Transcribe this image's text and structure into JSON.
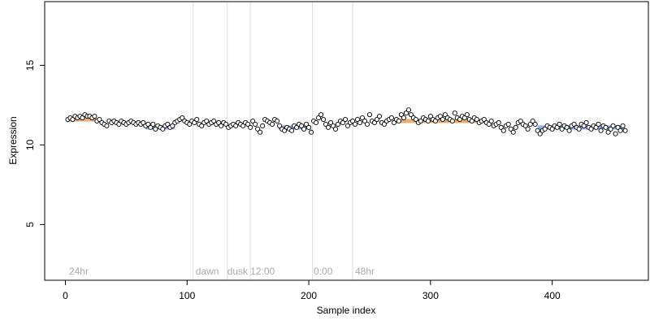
{
  "chart_data": {
    "type": "scatter",
    "title": "",
    "xlabel": "Sample index",
    "ylabel": "Expression",
    "xlim": [
      -17,
      479
    ],
    "ylim": [
      1.5,
      19
    ],
    "x_ticks": [
      0,
      100,
      200,
      300,
      400
    ],
    "x_tick_labels": [
      "0",
      "100",
      "200",
      "300",
      "400"
    ],
    "y_ticks": [
      5,
      10,
      15
    ],
    "y_tick_labels": [
      "5",
      "10",
      "15"
    ],
    "grid": false,
    "legend": "none",
    "vertical_lines_x": [
      105,
      133,
      152,
      203,
      236
    ],
    "annotations": [
      {
        "label": "24hr",
        "x": 3
      },
      {
        "label": "dawn",
        "x": 107
      },
      {
        "label": "dusk",
        "x": 133
      },
      {
        "label": "12:00",
        "x": 152
      },
      {
        "label": "0:00",
        "x": 204
      },
      {
        "label": "48hr",
        "x": 238
      }
    ],
    "colors": {
      "point_fill": "#ffffff",
      "point_stroke": "#000000",
      "warm_segment": "#e8a05a",
      "cool_segment": "#7aa0e8",
      "vline": "#dddddd",
      "annotation_text": "#aaaaaa"
    },
    "segments": [
      {
        "tone": "warm",
        "x": [
          2,
          25
        ],
        "y": 11.6
      },
      {
        "tone": "cool",
        "x": [
          66,
          90
        ],
        "y": 11.1
      },
      {
        "tone": "warm",
        "x": [
          270,
          345
        ],
        "y": 11.5
      },
      {
        "tone": "cool",
        "x": [
          175,
          200
        ],
        "y": 11.1
      },
      {
        "tone": "cool",
        "x": [
          388,
          460
        ],
        "y": 11.1
      }
    ],
    "series": [
      {
        "points": [
          [
            2,
            11.6
          ],
          [
            4,
            11.7
          ],
          [
            6,
            11.6
          ],
          [
            8,
            11.8
          ],
          [
            10,
            11.7
          ],
          [
            12,
            11.8
          ],
          [
            14,
            11.7
          ],
          [
            16,
            11.9
          ],
          [
            18,
            11.8
          ],
          [
            20,
            11.8
          ],
          [
            22,
            11.7
          ],
          [
            24,
            11.8
          ],
          [
            26,
            11.5
          ],
          [
            28,
            11.6
          ],
          [
            30,
            11.4
          ],
          [
            32,
            11.3
          ],
          [
            34,
            11.2
          ],
          [
            36,
            11.5
          ],
          [
            38,
            11.4
          ],
          [
            40,
            11.5
          ],
          [
            42,
            11.4
          ],
          [
            44,
            11.3
          ],
          [
            46,
            11.5
          ],
          [
            48,
            11.4
          ],
          [
            50,
            11.3
          ],
          [
            52,
            11.4
          ],
          [
            54,
            11.5
          ],
          [
            56,
            11.4
          ],
          [
            58,
            11.3
          ],
          [
            60,
            11.4
          ],
          [
            62,
            11.3
          ],
          [
            64,
            11.4
          ],
          [
            66,
            11.2
          ],
          [
            68,
            11.3
          ],
          [
            70,
            11.1
          ],
          [
            72,
            11.3
          ],
          [
            74,
            11.0
          ],
          [
            76,
            11.2
          ],
          [
            78,
            11.1
          ],
          [
            80,
            11.0
          ],
          [
            82,
            11.2
          ],
          [
            84,
            11.3
          ],
          [
            86,
            11.1
          ],
          [
            88,
            11.2
          ],
          [
            90,
            11.4
          ],
          [
            92,
            11.5
          ],
          [
            94,
            11.6
          ],
          [
            96,
            11.7
          ],
          [
            98,
            11.5
          ],
          [
            100,
            11.4
          ],
          [
            102,
            11.3
          ],
          [
            104,
            11.5
          ],
          [
            106,
            11.4
          ],
          [
            108,
            11.6
          ],
          [
            110,
            11.3
          ],
          [
            112,
            11.2
          ],
          [
            114,
            11.4
          ],
          [
            116,
            11.5
          ],
          [
            118,
            11.3
          ],
          [
            120,
            11.4
          ],
          [
            122,
            11.5
          ],
          [
            124,
            11.3
          ],
          [
            126,
            11.4
          ],
          [
            128,
            11.2
          ],
          [
            130,
            11.4
          ],
          [
            132,
            11.3
          ],
          [
            134,
            11.1
          ],
          [
            136,
            11.2
          ],
          [
            138,
            11.3
          ],
          [
            140,
            11.2
          ],
          [
            142,
            11.4
          ],
          [
            144,
            11.3
          ],
          [
            146,
            11.2
          ],
          [
            148,
            11.4
          ],
          [
            150,
            11.3
          ],
          [
            152,
            11.1
          ],
          [
            154,
            11.5
          ],
          [
            156,
            11.3
          ],
          [
            158,
            11.0
          ],
          [
            160,
            10.8
          ],
          [
            162,
            11.2
          ],
          [
            164,
            11.6
          ],
          [
            166,
            11.5
          ],
          [
            168,
            11.4
          ],
          [
            170,
            11.3
          ],
          [
            172,
            11.6
          ],
          [
            174,
            11.5
          ],
          [
            176,
            11.2
          ],
          [
            178,
            11.0
          ],
          [
            180,
            10.9
          ],
          [
            182,
            11.1
          ],
          [
            184,
            11.0
          ],
          [
            186,
            10.9
          ],
          [
            188,
            11.2
          ],
          [
            190,
            11.1
          ],
          [
            192,
            11.3
          ],
          [
            194,
            11.2
          ],
          [
            196,
            11.0
          ],
          [
            198,
            11.3
          ],
          [
            200,
            11.1
          ],
          [
            202,
            10.8
          ],
          [
            204,
            11.5
          ],
          [
            206,
            11.4
          ],
          [
            208,
            11.7
          ],
          [
            210,
            11.9
          ],
          [
            212,
            11.6
          ],
          [
            214,
            11.3
          ],
          [
            216,
            11.1
          ],
          [
            218,
            11.4
          ],
          [
            220,
            11.2
          ],
          [
            222,
            11.0
          ],
          [
            224,
            11.3
          ],
          [
            226,
            11.5
          ],
          [
            228,
            11.4
          ],
          [
            230,
            11.6
          ],
          [
            232,
            11.2
          ],
          [
            234,
            11.4
          ],
          [
            236,
            11.5
          ],
          [
            238,
            11.3
          ],
          [
            240,
            11.6
          ],
          [
            242,
            11.4
          ],
          [
            244,
            11.7
          ],
          [
            246,
            11.5
          ],
          [
            248,
            11.3
          ],
          [
            250,
            11.9
          ],
          [
            252,
            11.5
          ],
          [
            254,
            11.4
          ],
          [
            256,
            11.6
          ],
          [
            258,
            11.8
          ],
          [
            260,
            11.4
          ],
          [
            262,
            11.3
          ],
          [
            264,
            11.5
          ],
          [
            266,
            11.6
          ],
          [
            268,
            11.7
          ],
          [
            270,
            11.4
          ],
          [
            272,
            11.6
          ],
          [
            274,
            11.5
          ],
          [
            276,
            11.9
          ],
          [
            278,
            11.7
          ],
          [
            280,
            12.0
          ],
          [
            282,
            12.2
          ],
          [
            284,
            11.9
          ],
          [
            286,
            11.7
          ],
          [
            288,
            11.6
          ],
          [
            290,
            11.4
          ],
          [
            292,
            11.5
          ],
          [
            294,
            11.7
          ],
          [
            296,
            11.6
          ],
          [
            298,
            11.5
          ],
          [
            300,
            11.8
          ],
          [
            302,
            11.6
          ],
          [
            304,
            11.5
          ],
          [
            306,
            11.7
          ],
          [
            308,
            11.8
          ],
          [
            310,
            11.6
          ],
          [
            312,
            11.9
          ],
          [
            314,
            11.7
          ],
          [
            316,
            11.6
          ],
          [
            318,
            11.5
          ],
          [
            320,
            12.0
          ],
          [
            322,
            11.7
          ],
          [
            324,
            11.6
          ],
          [
            326,
            11.8
          ],
          [
            328,
            11.7
          ],
          [
            330,
            11.9
          ],
          [
            332,
            11.6
          ],
          [
            334,
            11.5
          ],
          [
            336,
            11.7
          ],
          [
            338,
            11.6
          ],
          [
            340,
            11.4
          ],
          [
            342,
            11.5
          ],
          [
            344,
            11.6
          ],
          [
            346,
            11.4
          ],
          [
            348,
            11.3
          ],
          [
            350,
            11.5
          ],
          [
            352,
            11.2
          ],
          [
            354,
            11.3
          ],
          [
            356,
            11.4
          ],
          [
            358,
            11.1
          ],
          [
            360,
            10.9
          ],
          [
            362,
            11.2
          ],
          [
            364,
            11.3
          ],
          [
            366,
            11.0
          ],
          [
            368,
            10.8
          ],
          [
            370,
            11.1
          ],
          [
            372,
            11.4
          ],
          [
            374,
            11.5
          ],
          [
            376,
            11.3
          ],
          [
            378,
            11.2
          ],
          [
            380,
            11.0
          ],
          [
            382,
            11.3
          ],
          [
            384,
            11.5
          ],
          [
            386,
            11.3
          ],
          [
            388,
            10.9
          ],
          [
            390,
            10.7
          ],
          [
            392,
            10.9
          ],
          [
            394,
            11.0
          ],
          [
            396,
            11.2
          ],
          [
            398,
            11.1
          ],
          [
            400,
            11.0
          ],
          [
            402,
            11.2
          ],
          [
            404,
            11.1
          ],
          [
            406,
            11.3
          ],
          [
            408,
            11.0
          ],
          [
            410,
            11.2
          ],
          [
            412,
            11.1
          ],
          [
            414,
            10.9
          ],
          [
            416,
            11.2
          ],
          [
            418,
            11.3
          ],
          [
            420,
            11.1
          ],
          [
            422,
            11.0
          ],
          [
            424,
            11.3
          ],
          [
            426,
            11.2
          ],
          [
            428,
            11.4
          ],
          [
            430,
            11.1
          ],
          [
            432,
            11.0
          ],
          [
            434,
            11.2
          ],
          [
            436,
            11.1
          ],
          [
            438,
            11.3
          ],
          [
            440,
            10.9
          ],
          [
            442,
            11.2
          ],
          [
            444,
            11.1
          ],
          [
            446,
            10.8
          ],
          [
            448,
            11.0
          ],
          [
            450,
            11.2
          ],
          [
            452,
            10.7
          ],
          [
            454,
            11.1
          ],
          [
            456,
            10.9
          ],
          [
            458,
            11.2
          ],
          [
            460,
            10.9
          ]
        ]
      }
    ]
  }
}
